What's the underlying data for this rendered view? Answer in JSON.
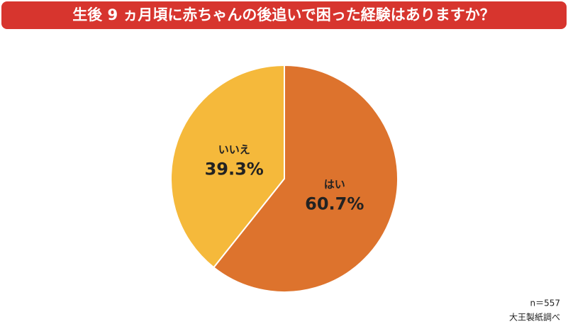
{
  "chart_data": {
    "type": "pie",
    "title": "生後 9 ヵ月頃に赤ちゃんの後追いで困った経験はありますか？",
    "categories": [
      "はい",
      "いいえ"
    ],
    "values": [
      60.7,
      39.3
    ],
    "value_labels": [
      "60.7%",
      "39.3%"
    ],
    "colors": [
      "#dd732d",
      "#f5b93b"
    ],
    "annotations": [
      "n＝557",
      "大王製紙調べ"
    ]
  }
}
